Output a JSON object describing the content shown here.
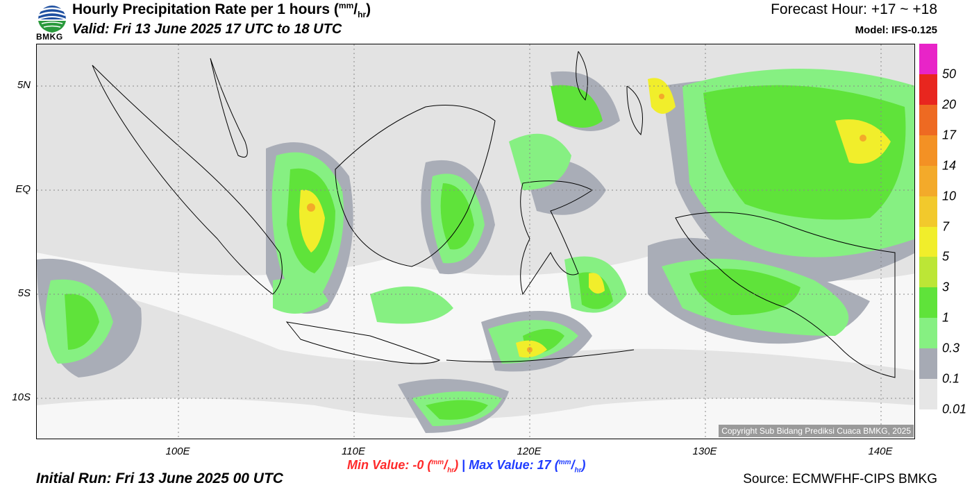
{
  "header": {
    "title": "Hourly Precipitation Rate per 1 hours",
    "title_unit_num": "mm",
    "title_unit_den": "hr",
    "valid": "Valid: Fri 13 June 2025 17 UTC to 18 UTC",
    "forecast_hour": "Forecast Hour: +17 ~ +18",
    "model": "Model: IFS-0.125",
    "logo_text": "BMKG"
  },
  "map": {
    "lat_labels": [
      "5N",
      "EQ",
      "5S",
      "10S"
    ],
    "lon_labels": [
      "100E",
      "110E",
      "120E",
      "130E",
      "140E"
    ],
    "copyright": "Copyright Sub Bidang Prediksi Cuaca BMKG, 2025"
  },
  "colorbar": {
    "labels": [
      "50",
      "20",
      "17",
      "14",
      "10",
      "7",
      "5",
      "3",
      "1",
      "0.3",
      "0.1",
      "0.01"
    ],
    "colors": [
      "#e824c8",
      "#e8261f",
      "#ee6a22",
      "#f39124",
      "#f3aa2a",
      "#f2c92c",
      "#f1ee2b",
      "#bce636",
      "#5fe33a",
      "#86f082",
      "#a6aab4",
      "#e6e6e6"
    ]
  },
  "stats": {
    "min_label": "Min Value:",
    "min_value": "-0",
    "max_label": "Max Value:",
    "max_value": "17",
    "unit_num": "mm",
    "unit_den": "hr",
    "separator": "|"
  },
  "footer": {
    "initial_run": "Initial Run: Fri 13 June 2025 00 UTC",
    "source": "Source: ECMWFHF-CIPS BMKG"
  }
}
